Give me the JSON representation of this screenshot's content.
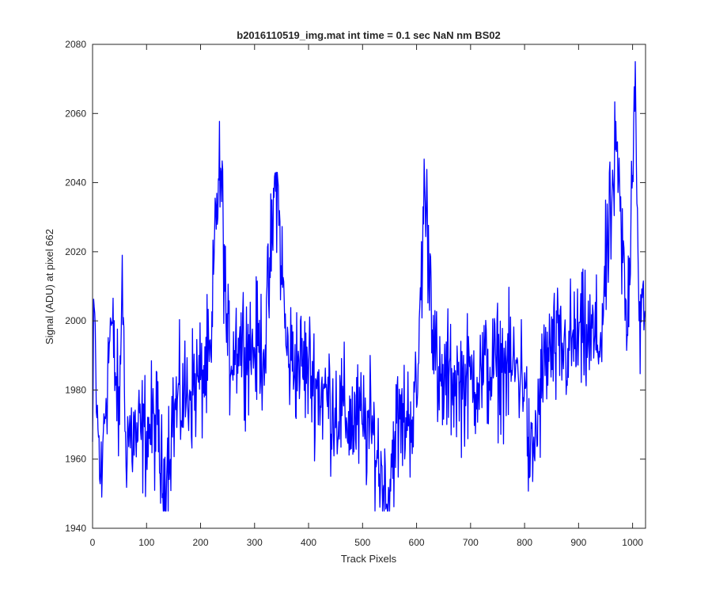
{
  "chart_data": {
    "type": "line",
    "title": "b2016110519_img.mat int time = 0.1 sec  NaN nm BS02",
    "xlabel": "Track Pixels",
    "ylabel": "Signal (ADU) at pixel 662",
    "xlim": [
      0,
      1024
    ],
    "ylim": [
      1940,
      2080
    ],
    "xticks": [
      0,
      100,
      200,
      300,
      400,
      500,
      600,
      700,
      800,
      900,
      1000
    ],
    "yticks": [
      1940,
      1960,
      1980,
      2000,
      2020,
      2040,
      2060,
      2080
    ],
    "grid": false,
    "line_color": "#0000ff",
    "series": [
      {
        "description": "noisy signal trace, anchor points read from the plot; full resolution is 1024 samples, noise amplitude about 14 ADU",
        "anchors_x": [
          0,
          3,
          8,
          15,
          17,
          20,
          34,
          50,
          55,
          60,
          80,
          100,
          120,
          130,
          150,
          180,
          200,
          220,
          228,
          238,
          250,
          270,
          300,
          320,
          340,
          360,
          380,
          400,
          420,
          440,
          470,
          500,
          520,
          545,
          560,
          580,
          600,
          615,
          640,
          660,
          680,
          700,
          720,
          760,
          800,
          810,
          840,
          880,
          900,
          940,
          970,
          990,
          1005,
          1012,
          1024
        ],
        "anchors_y": [
          1965,
          2004,
          1972,
          1956,
          1949,
          1968,
          2000,
          1970,
          2019,
          1968,
          1966,
          1968,
          1970,
          1950,
          1974,
          1980,
          1983,
          1988,
          2033,
          2043,
          1990,
          1995,
          1992,
          1993,
          2043,
          1990,
          1988,
          1986,
          1980,
          1977,
          1972,
          1970,
          1967,
          1947,
          1968,
          1972,
          1975,
          2039,
          1978,
          1984,
          1982,
          1983,
          1985,
          1987,
          1985,
          1955,
          1990,
          1992,
          1995,
          1994,
          2049,
          1996,
          2075,
          2000,
          2000
        ]
      }
    ]
  }
}
